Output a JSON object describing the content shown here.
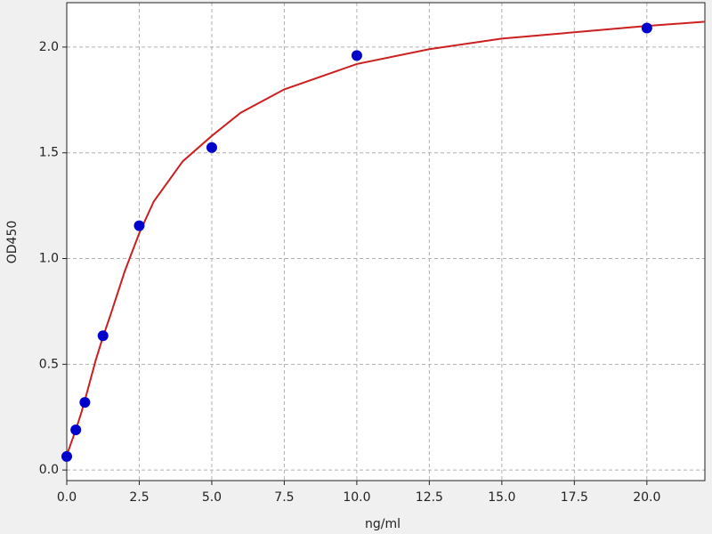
{
  "chart_data": {
    "type": "scatter",
    "xlabel": "ng/ml",
    "ylabel": "OD450",
    "xlim": [
      0,
      22
    ],
    "ylim": [
      -0.05,
      2.21
    ],
    "xticks": [
      {
        "value": 0,
        "label": "0.0"
      },
      {
        "value": 2.5,
        "label": "2.5"
      },
      {
        "value": 5,
        "label": "5.0"
      },
      {
        "value": 7.5,
        "label": "7.5"
      },
      {
        "value": 10,
        "label": "10.0"
      },
      {
        "value": 12.5,
        "label": "12.5"
      },
      {
        "value": 15,
        "label": "15.0"
      },
      {
        "value": 17.5,
        "label": "17.5"
      },
      {
        "value": 20,
        "label": "20.0"
      }
    ],
    "yticks": [
      {
        "value": 0,
        "label": "0.0"
      },
      {
        "value": 0.5,
        "label": "0.5"
      },
      {
        "value": 1,
        "label": "1.0"
      },
      {
        "value": 1.5,
        "label": "1.5"
      },
      {
        "value": 2,
        "label": "2.0"
      }
    ],
    "grid": true,
    "series": [
      {
        "type": "line",
        "color": "#cc1f1f",
        "x": [
          0,
          0.3125,
          0.5,
          0.625,
          1,
          1.25,
          1.5,
          2,
          2.5,
          3,
          4,
          5,
          6,
          7.5,
          10,
          12.5,
          15,
          17.5,
          20,
          22
        ],
        "values": [
          0.07,
          0.19,
          0.27,
          0.33,
          0.52,
          0.63,
          0.73,
          0.94,
          1.12,
          1.27,
          1.46,
          1.58,
          1.69,
          1.8,
          1.92,
          1.99,
          2.04,
          2.07,
          2.1,
          2.12
        ]
      },
      {
        "type": "scatter",
        "color": "#0000cc",
        "x": [
          0,
          0.3125,
          0.625,
          1.25,
          2.5,
          5,
          10,
          20
        ],
        "values": [
          0.064,
          0.19,
          0.32,
          0.635,
          1.155,
          1.525,
          1.96,
          2.09
        ]
      }
    ]
  }
}
